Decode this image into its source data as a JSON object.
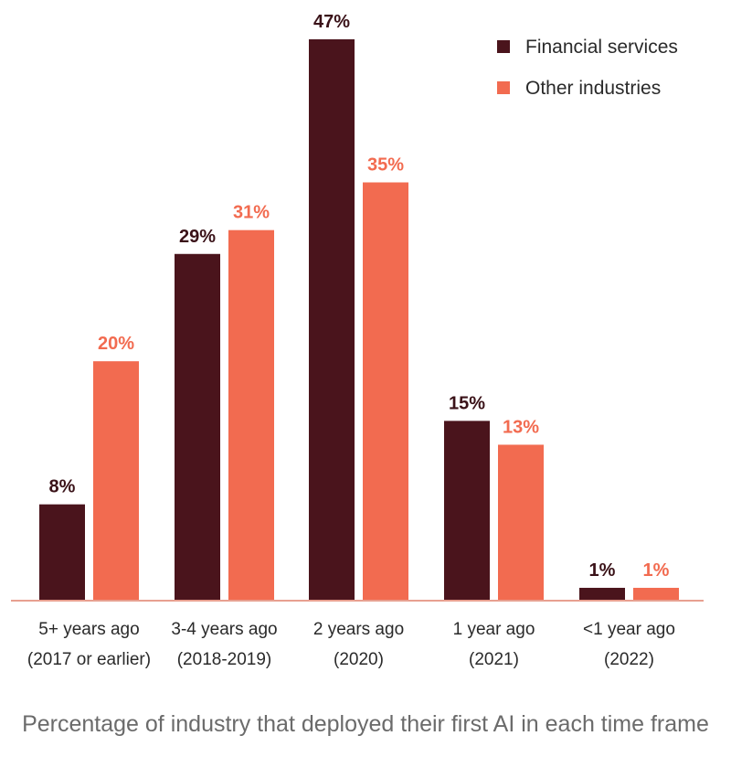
{
  "chart_data": {
    "type": "bar",
    "categories": [
      [
        "5+ years ago",
        "(2017 or earlier)"
      ],
      [
        "3-4 years ago",
        "(2018-2019)"
      ],
      [
        "2 years ago",
        "(2020)"
      ],
      [
        "1 year ago",
        "(2021)"
      ],
      [
        "<1 year ago",
        "(2022)"
      ]
    ],
    "series": [
      {
        "name": "Financial services",
        "values": [
          8,
          29,
          47,
          15,
          1
        ],
        "labels": [
          "8%",
          "29%",
          "47%",
          "15%",
          "1%"
        ],
        "color": "#4a141c"
      },
      {
        "name": "Other industries",
        "values": [
          20,
          31,
          35,
          13,
          1
        ],
        "labels": [
          "20%",
          "31%",
          "35%",
          "13%",
          "1%"
        ],
        "color": "#f26b50"
      }
    ],
    "ylim": [
      0,
      47
    ],
    "legend": "top-right",
    "grid": false,
    "caption": "Percentage of industry that deployed their first AI in each time frame"
  }
}
